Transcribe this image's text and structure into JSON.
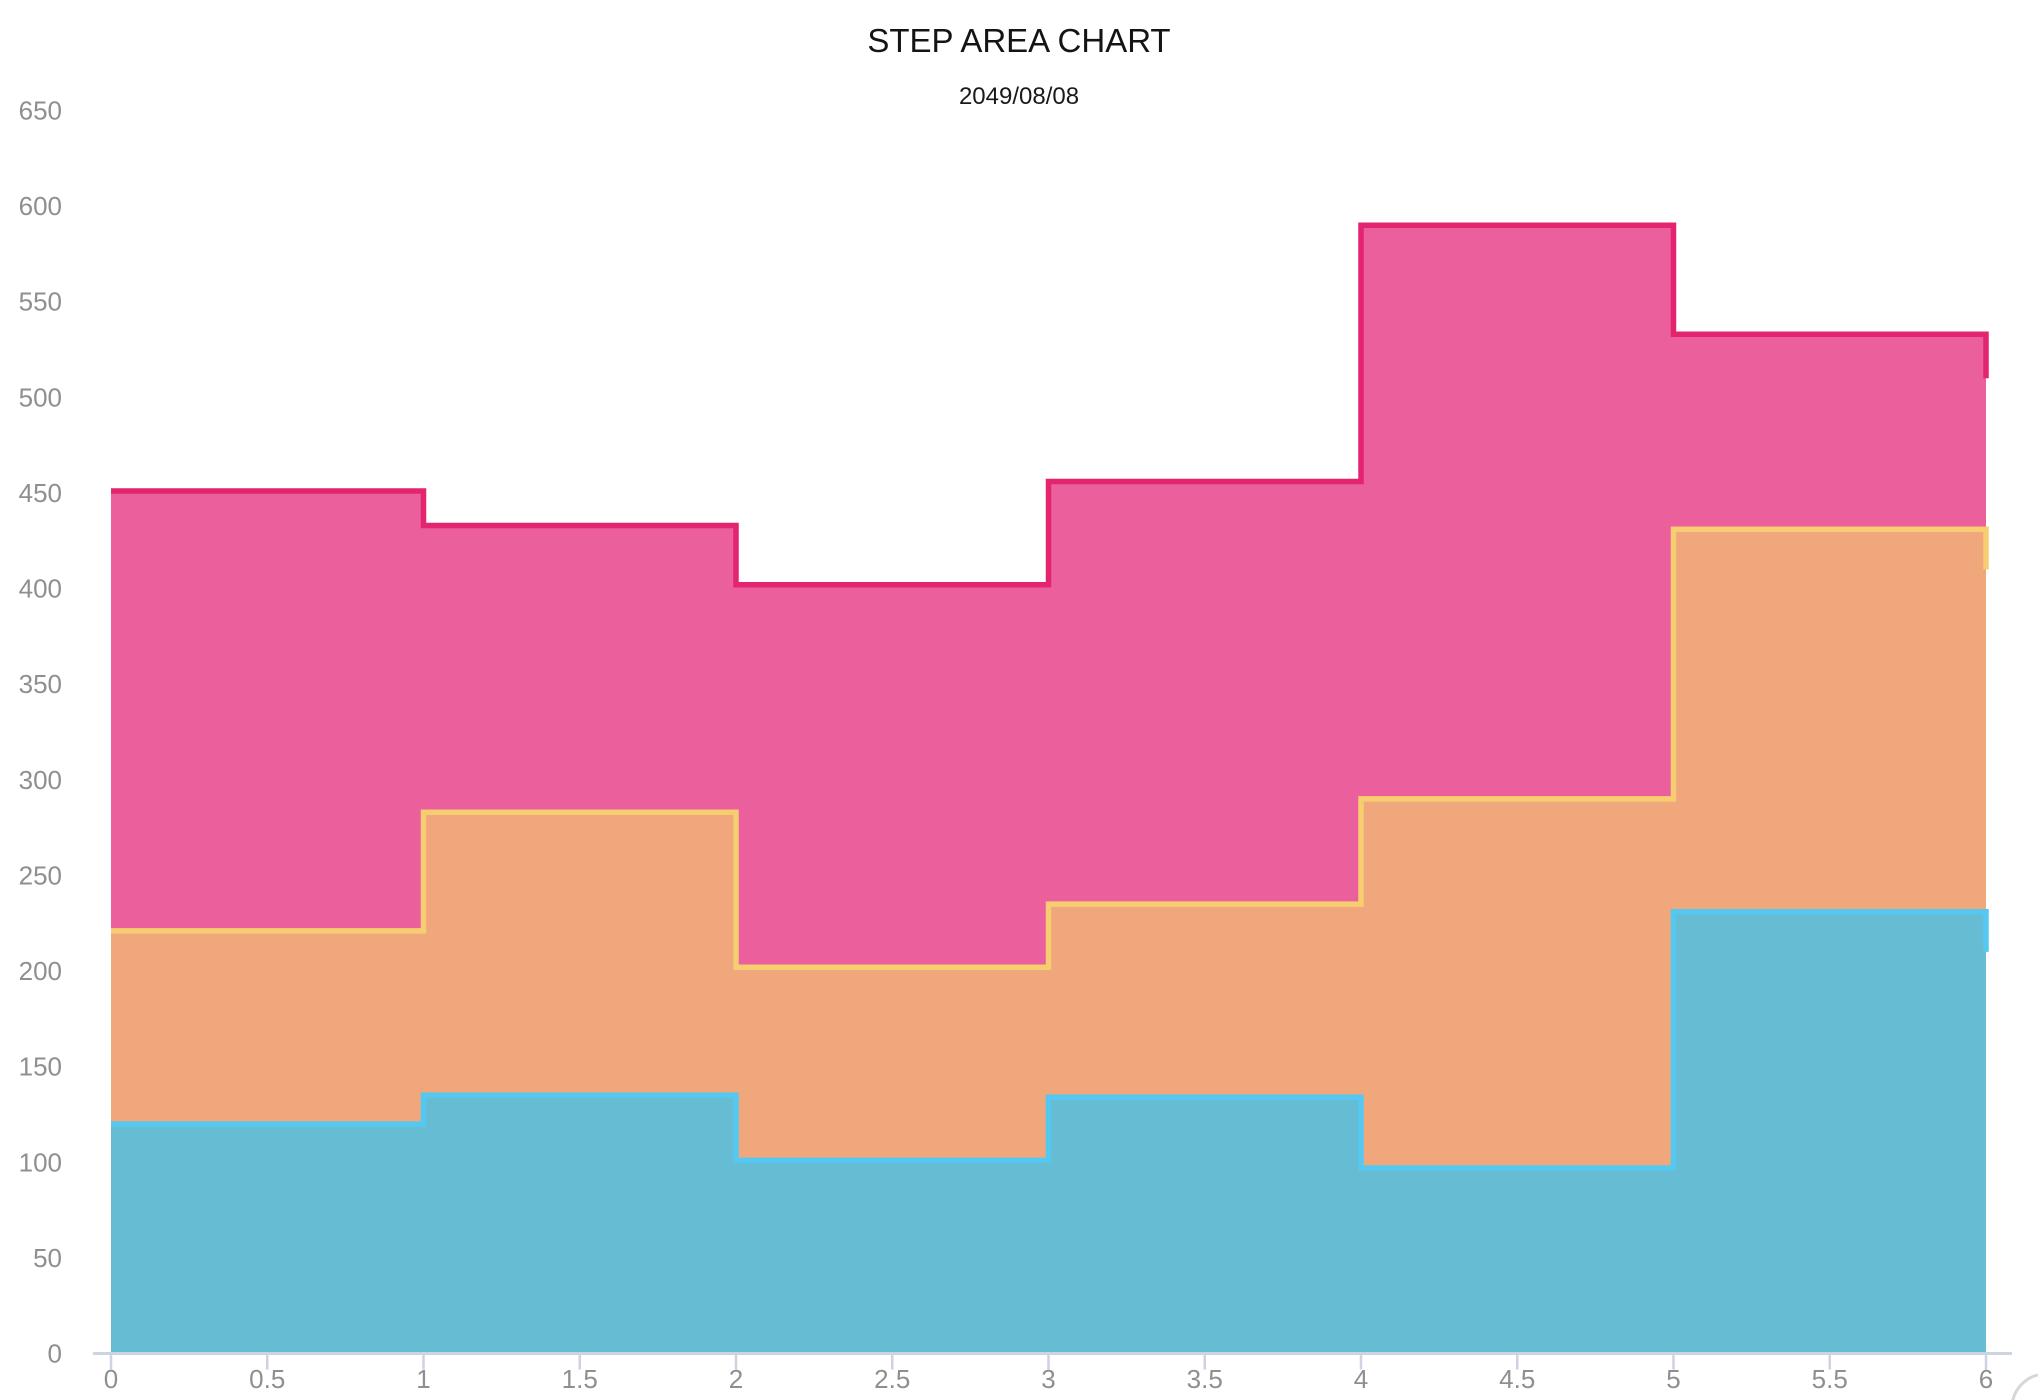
{
  "title": {
    "text": "STEP AREA CHART",
    "subtitle": "2049/08/08",
    "title_color": "#141414",
    "subtitle_color": "#1a1a1a"
  },
  "axes": {
    "axis_color": "#ccd3e2",
    "tick_label_color": "#8f8f8f",
    "x_tick_labels": [
      "0",
      "0.5",
      "1",
      "1.5",
      "2",
      "2.5",
      "3",
      "3.5",
      "4",
      "4.5",
      "5",
      "5.5",
      "6"
    ],
    "y_tick_labels": [
      "0",
      "50",
      "100",
      "150",
      "200",
      "250",
      "300",
      "350",
      "400",
      "450",
      "500",
      "550",
      "600",
      "650"
    ]
  },
  "decor": {
    "corner_arc_color": "#d7d7d7"
  },
  "chart_data": {
    "type": "area",
    "variant": "step-end",
    "stacked": true,
    "title": "STEP AREA CHART",
    "subtitle": "2049/08/08",
    "xlabel": "",
    "ylabel": "",
    "xlim": [
      0,
      6
    ],
    "ylim": [
      0,
      650
    ],
    "x_tick_step": 0.5,
    "y_tick_step": 50,
    "grid": false,
    "legend": false,
    "x": [
      0,
      1,
      2,
      3,
      4,
      5,
      6
    ],
    "series": [
      {
        "name": "blue",
        "values": [
          120,
          135,
          101,
          134,
          97,
          231,
          210
        ],
        "fill": "#66bcd2",
        "stroke": "#55c8f2"
      },
      {
        "name": "orange",
        "values": [
          101,
          148,
          101,
          101,
          193,
          200,
          200
        ],
        "fill": "#f0a77b",
        "stroke": "#f6ce71"
      },
      {
        "name": "pink",
        "values": [
          230,
          150,
          200,
          221,
          300,
          102,
          100
        ],
        "fill": "#ec5f9d",
        "stroke": "#e3246e"
      }
    ],
    "stacked_totals_note": "cumulative tops: blue [120,135,101,134,97,231,210]; blue+orange [221,283,202,235,290,431,410]; total [451,433,402,456,590,533,510]"
  }
}
